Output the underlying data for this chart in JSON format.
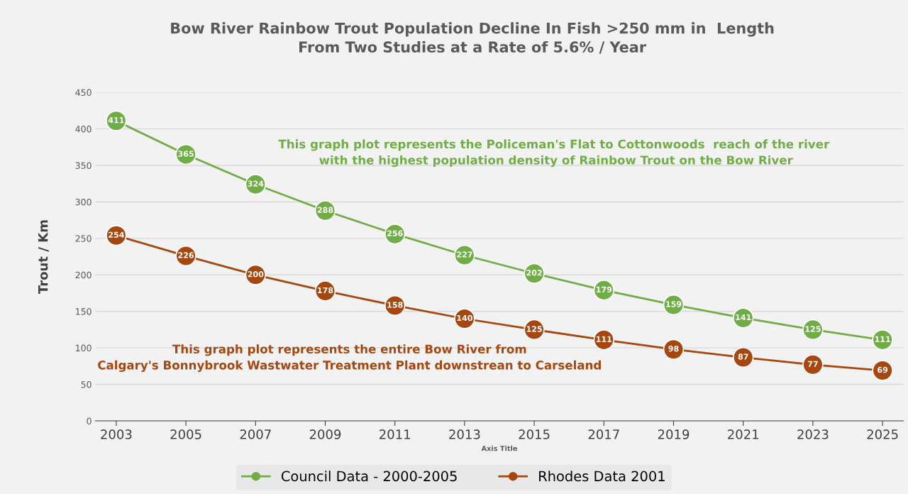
{
  "chart_data": {
    "type": "line",
    "title": "Bow River Rainbow Trout Population Decline In Fish >250 mm in  Length\nFrom Two Studies at a Rate of 5.6% / Year",
    "xlabel": "Axis Title",
    "ylabel": "Trout / Km",
    "categories": [
      "2003",
      "2005",
      "2007",
      "2009",
      "2011",
      "2013",
      "2015",
      "2017",
      "2019",
      "2021",
      "2023",
      "2025"
    ],
    "series": [
      {
        "name": "Council Data - 2000-2005",
        "color": "#70ad47",
        "values": [
          411,
          365,
          324,
          288,
          256,
          227,
          202,
          179,
          159,
          141,
          125,
          111
        ]
      },
      {
        "name": "Rhodes Data 2001",
        "color": "#a5470f",
        "values": [
          254,
          226,
          200,
          178,
          158,
          140,
          125,
          111,
          98,
          87,
          77,
          69
        ]
      }
    ],
    "ylim": [
      0,
      450
    ],
    "yticks": [
      0,
      50,
      100,
      150,
      200,
      250,
      300,
      350,
      400,
      450
    ],
    "grid": "y",
    "legend": "bottom",
    "marker": "circle",
    "line_style": "solid",
    "data_labels": true,
    "annotations": [
      "This graph plot represents the Policeman's Flat to Cottonwoods  reach of the river\n with the highest population density of Rainbow Trout on the Bow River",
      "This graph plot represents the entire Bow River from\nCalgary's Bonnybrook Wastwater Treatment Plant downstrean to Carseland"
    ]
  }
}
